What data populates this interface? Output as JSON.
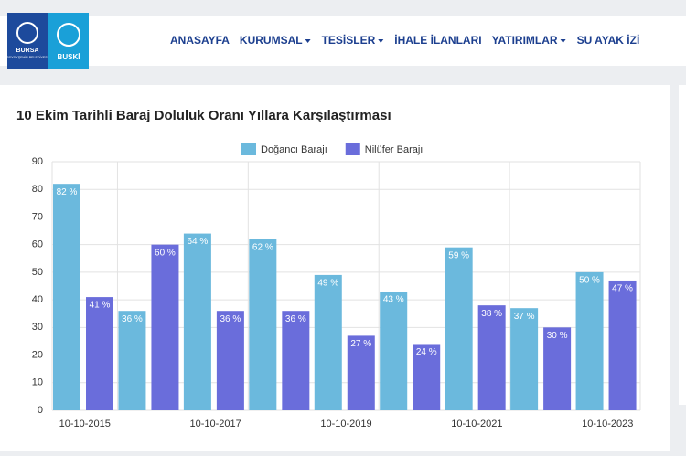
{
  "header": {
    "logo_city": "BURSA",
    "logo_city_sub": "BÜYÜKŞEHİR BELEDİYESİ",
    "logo_water": "BUSKİ",
    "nav": [
      "ANASAYFA",
      "KURUMSAL",
      "TESİSLER",
      "İHALE İLANLARI",
      "YATIRIMLAR",
      "SU AYAK İZİ"
    ]
  },
  "chart_data": {
    "type": "bar",
    "title": "10 Ekim Tarihli Baraj Doluluk Oranı Yıllara Karşılaştırması",
    "categories": [
      "10-10-2015",
      null,
      "10-10-2017",
      null,
      "10-10-2019",
      null,
      "10-10-2021",
      null,
      "10-10-2023"
    ],
    "series": [
      {
        "name": "Doğancı Barajı",
        "color": "#6bb9dd",
        "values": [
          82,
          36,
          64,
          62,
          49,
          43,
          59,
          37,
          50
        ],
        "value_labels": [
          "82 %",
          "36 %",
          "64 %",
          "62 %",
          "49 %",
          "43 %",
          "59 %",
          "37 %",
          "50 %"
        ]
      },
      {
        "name": "Nilüfer Barajı",
        "color": "#6a6ddb",
        "values": [
          41,
          60,
          36,
          36,
          27,
          24,
          38,
          30,
          47
        ],
        "value_labels": [
          "41 %",
          "60 %",
          "36 %",
          "36 %",
          "27 %",
          "24 %",
          "38 %",
          "30 %",
          "47 %"
        ]
      }
    ],
    "ylim": [
      0,
      90
    ],
    "yticks": [
      0,
      10,
      20,
      30,
      40,
      50,
      60,
      70,
      80,
      90
    ],
    "grid": true,
    "legend": "top"
  }
}
